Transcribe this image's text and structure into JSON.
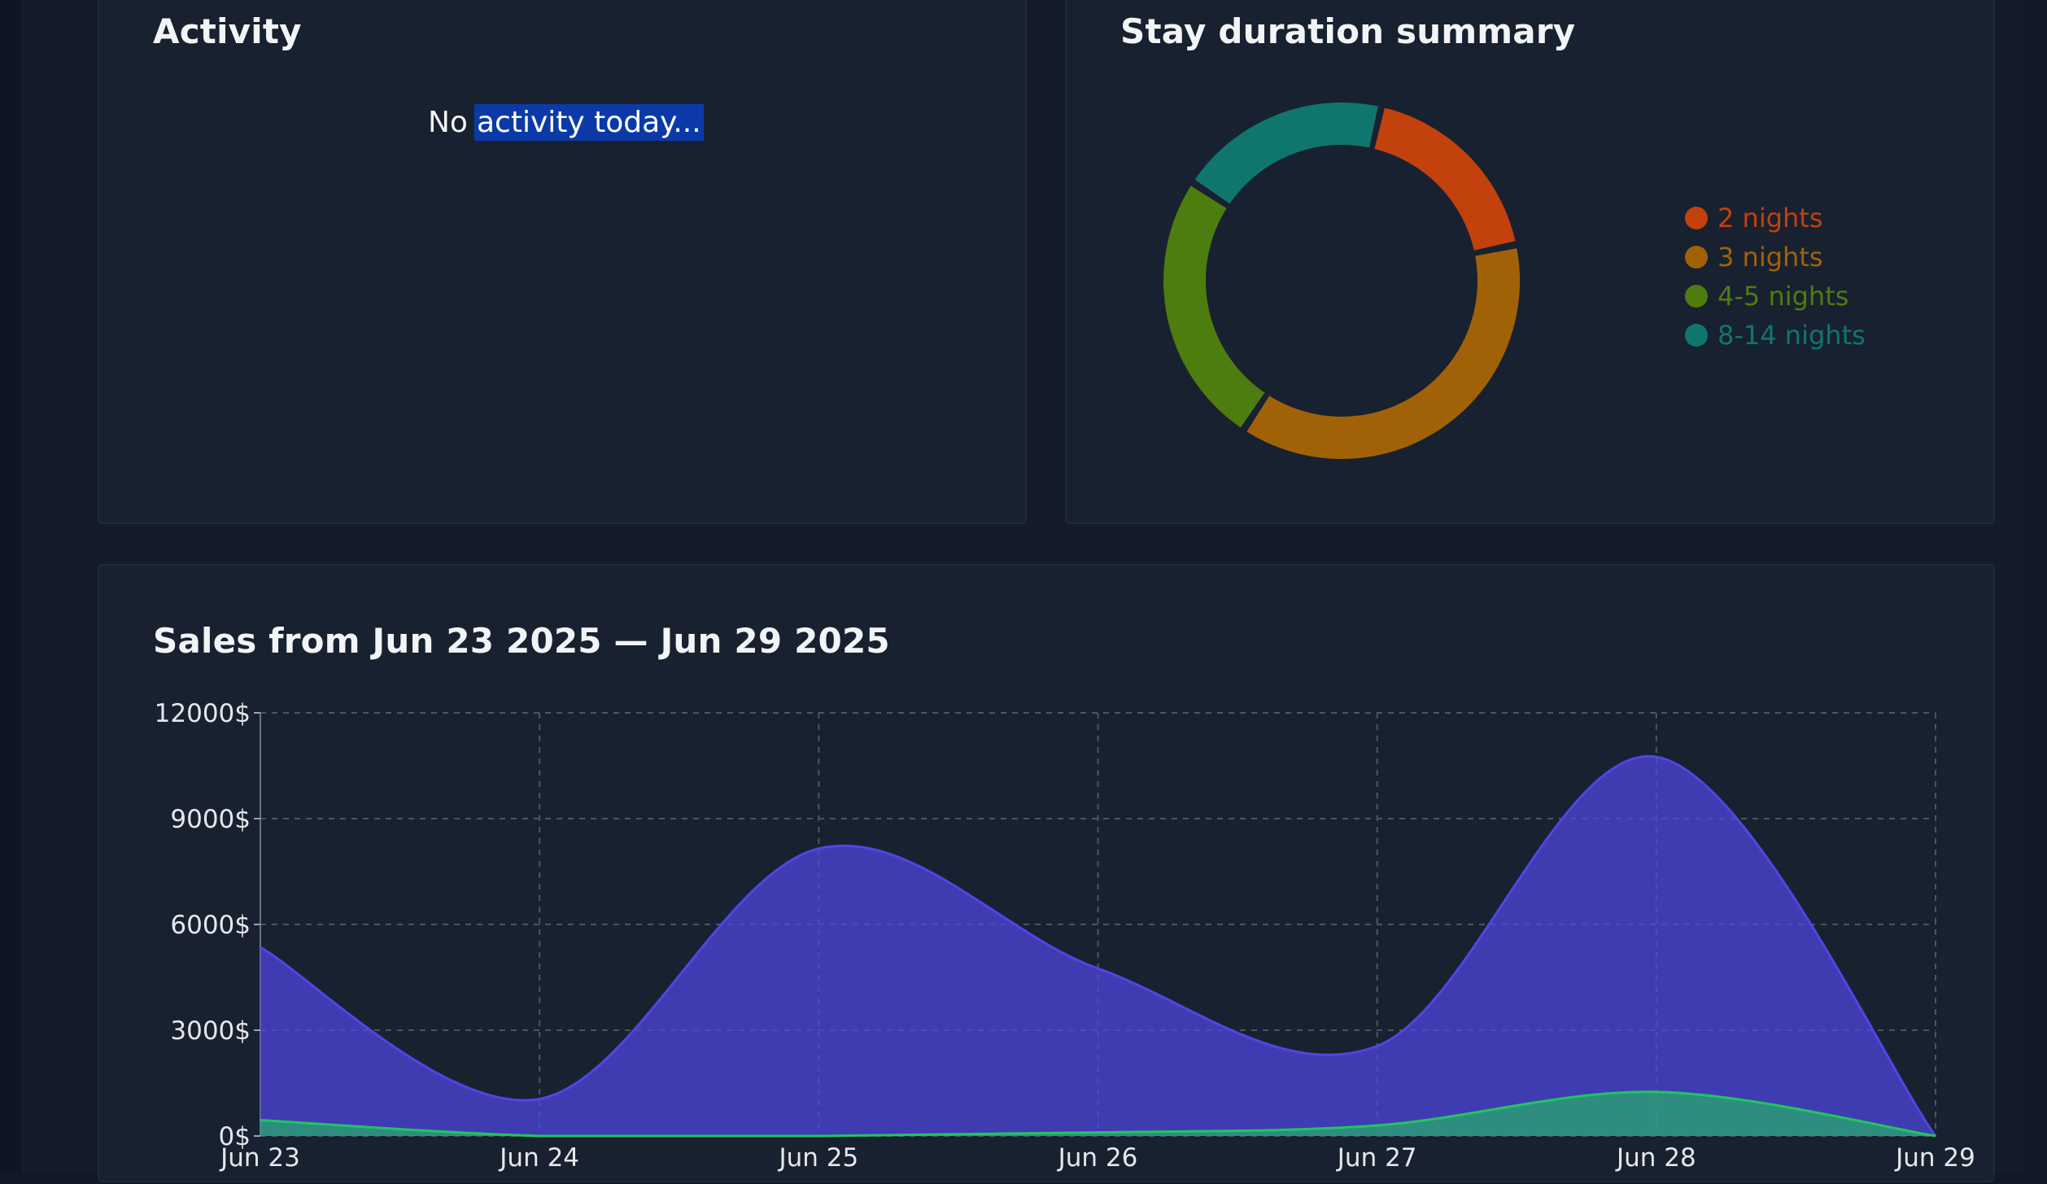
{
  "activity": {
    "title": "Activity",
    "empty_prefix": "No",
    "empty_selected": "activity today..."
  },
  "stay": {
    "title": "Stay duration summary",
    "segments": [
      {
        "label": "2 nights",
        "value": 16,
        "color": "#c2410c"
      },
      {
        "label": "3 nights",
        "value": 33,
        "color": "#a16207"
      },
      {
        "label": "4-5 nights",
        "value": 22,
        "color": "#4d7c0f"
      },
      {
        "label": "8-14 nights",
        "value": 17,
        "color": "#0f766e"
      }
    ]
  },
  "sales": {
    "title": "Sales from Jun 23 2025 — Jun 29 2025"
  },
  "chart_data": {
    "type": "area",
    "x": [
      "Jun 23",
      "Jun 24",
      "Jun 25",
      "Jun 26",
      "Jun 27",
      "Jun 28",
      "Jun 29"
    ],
    "ylim": [
      0,
      12000
    ],
    "y_ticks": [
      "0$",
      "3000$",
      "6000$",
      "9000$",
      "12000$"
    ],
    "y_tick_values": [
      0,
      3000,
      6000,
      9000,
      12000
    ],
    "grid": true,
    "series": [
      {
        "values": [
          5350,
          1050,
          8150,
          4750,
          2550,
          10750,
          0
        ],
        "color": "#4f46e5"
      },
      {
        "values": [
          450,
          0,
          0,
          100,
          300,
          1250,
          0
        ],
        "color": "#22c55e"
      }
    ]
  }
}
